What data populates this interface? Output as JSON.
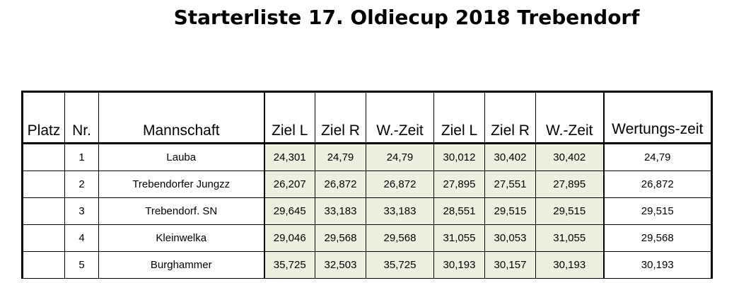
{
  "title": "Starterliste 17. Oldiecup 2018 Trebendorf",
  "headers": {
    "platz": "Platz",
    "nr": "Nr.",
    "mannschaft": "Mannschaft",
    "ziel_l_1": "Ziel L",
    "ziel_r_1": "Ziel R",
    "w_zeit_1": "W.-Zeit",
    "ziel_l_2": "Ziel L",
    "ziel_r_2": "Ziel R",
    "w_zeit_2": "W.-Zeit",
    "wertungszeit": "Wertungs-zeit"
  },
  "rows": [
    {
      "platz": "",
      "nr": "1",
      "mannschaft": "Lauba",
      "ziel_l_1": "24,301",
      "ziel_r_1": "24,79",
      "w_zeit_1": "24,79",
      "ziel_l_2": "30,012",
      "ziel_r_2": "30,402",
      "w_zeit_2": "30,402",
      "wertungszeit": "24,79"
    },
    {
      "platz": "",
      "nr": "2",
      "mannschaft": "Trebendorfer Jungzz",
      "ziel_l_1": "26,207",
      "ziel_r_1": "26,872",
      "w_zeit_1": "26,872",
      "ziel_l_2": "27,895",
      "ziel_r_2": "27,551",
      "w_zeit_2": "27,895",
      "wertungszeit": "26,872"
    },
    {
      "platz": "",
      "nr": "3",
      "mannschaft": "Trebendorf. SN",
      "ziel_l_1": "29,645",
      "ziel_r_1": "33,183",
      "w_zeit_1": "33,183",
      "ziel_l_2": "28,551",
      "ziel_r_2": "29,515",
      "w_zeit_2": "29,515",
      "wertungszeit": "29,515"
    },
    {
      "platz": "",
      "nr": "4",
      "mannschaft": "Kleinwelka",
      "ziel_l_1": "29,046",
      "ziel_r_1": "29,568",
      "w_zeit_1": "29,568",
      "ziel_l_2": "31,055",
      "ziel_r_2": "30,053",
      "w_zeit_2": "31,055",
      "wertungszeit": "29,568"
    },
    {
      "platz": "",
      "nr": "5",
      "mannschaft": "Burghammer",
      "ziel_l_1": "35,725",
      "ziel_r_1": "32,503",
      "w_zeit_1": "35,725",
      "ziel_l_2": "30,193",
      "ziel_r_2": "30,157",
      "w_zeit_2": "30,193",
      "wertungszeit": "30,193"
    }
  ],
  "colors": {
    "shaded_cell": "#ebf1de",
    "grid": "#000000"
  }
}
